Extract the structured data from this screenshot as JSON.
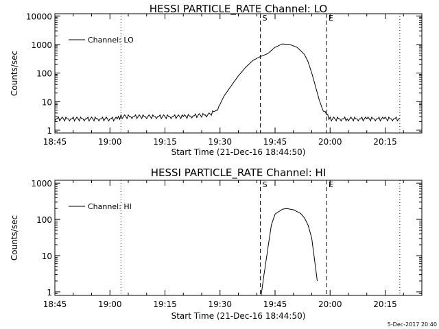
{
  "footer_timestamp": "5-Dec-2017 20:40",
  "colors": {
    "background": "#ffffff",
    "foreground": "#000000"
  },
  "chart_data": [
    {
      "type": "line",
      "title": "HESSI PARTICLE_RATE Channel: LO",
      "xlabel": "Start Time (21-Dec-16 18:44:50)",
      "ylabel": "Counts/sec",
      "yscale": "log",
      "ylim": [
        0.8,
        12000
      ],
      "xlim": [
        "18:45",
        "20:25"
      ],
      "x_tick_labels": [
        "18:45",
        "19:00",
        "19:15",
        "19:30",
        "19:45",
        "20:00",
        "20:15"
      ],
      "y_tick_labels": [
        "1",
        "10",
        "100",
        "1000",
        "10000"
      ],
      "legend": {
        "label": "Channel: LO",
        "placement": "top-left"
      },
      "grid": false,
      "markers": [
        {
          "label": "S",
          "time": "19:41",
          "style": "dashed"
        },
        {
          "label": "E",
          "time": "19:59",
          "style": "dashed"
        },
        {
          "label": "",
          "time": "19:03",
          "style": "dotted"
        },
        {
          "label": "",
          "time": "20:19",
          "style": "dotted"
        }
      ],
      "series": [
        {
          "name": "Channel: LO",
          "x": [
            "18:45",
            "19:00",
            "19:02",
            "19:03",
            "19:10",
            "19:20",
            "19:27",
            "19:29",
            "19:30",
            "19:31",
            "19:33",
            "19:35",
            "19:37",
            "19:39",
            "19:41",
            "19:43",
            "19:45",
            "19:47",
            "19:49",
            "19:51",
            "19:53",
            "19:54",
            "19:55",
            "19:56",
            "19:57",
            "19:58",
            "19:59",
            "20:00",
            "20:05",
            "20:10",
            "20:15",
            "20:19"
          ],
          "y": [
            2.5,
            2.5,
            2.5,
            3,
            3,
            3,
            3.5,
            5,
            8,
            15,
            35,
            80,
            160,
            280,
            380,
            480,
            800,
            1050,
            1000,
            800,
            450,
            250,
            100,
            35,
            12,
            5,
            3.5,
            2.5,
            2.5,
            2.5,
            2.5,
            2.5
          ],
          "noise": true
        }
      ]
    },
    {
      "type": "line",
      "title": "HESSI PARTICLE_RATE Channel: HI",
      "xlabel": "Start Time (21-Dec-16 18:44:50)",
      "ylabel": "Counts/sec",
      "yscale": "log",
      "ylim": [
        0.8,
        1200
      ],
      "xlim": [
        "18:45",
        "20:25"
      ],
      "x_tick_labels": [
        "18:45",
        "19:00",
        "19:15",
        "19:30",
        "19:45",
        "20:00",
        "20:15"
      ],
      "y_tick_labels": [
        "1",
        "10",
        "100",
        "1000"
      ],
      "legend": {
        "label": "Channel: HI",
        "placement": "top-left"
      },
      "grid": false,
      "markers": [
        {
          "label": "S",
          "time": "19:41",
          "style": "dashed"
        },
        {
          "label": "E",
          "time": "19:59",
          "style": "dashed"
        },
        {
          "label": "",
          "time": "19:03",
          "style": "dotted"
        },
        {
          "label": "",
          "time": "20:19",
          "style": "dotted"
        }
      ],
      "series": [
        {
          "name": "Channel: HI",
          "x": [
            "19:41.2",
            "19:42",
            "19:43",
            "19:44",
            "19:45",
            "19:47",
            "19:48",
            "19:50",
            "19:52",
            "19:53",
            "19:54",
            "19:55",
            "19:56",
            "19:56.5"
          ],
          "y": [
            0.8,
            3,
            15,
            70,
            140,
            190,
            200,
            185,
            145,
            110,
            70,
            30,
            5,
            2
          ],
          "noise": false
        }
      ]
    }
  ]
}
